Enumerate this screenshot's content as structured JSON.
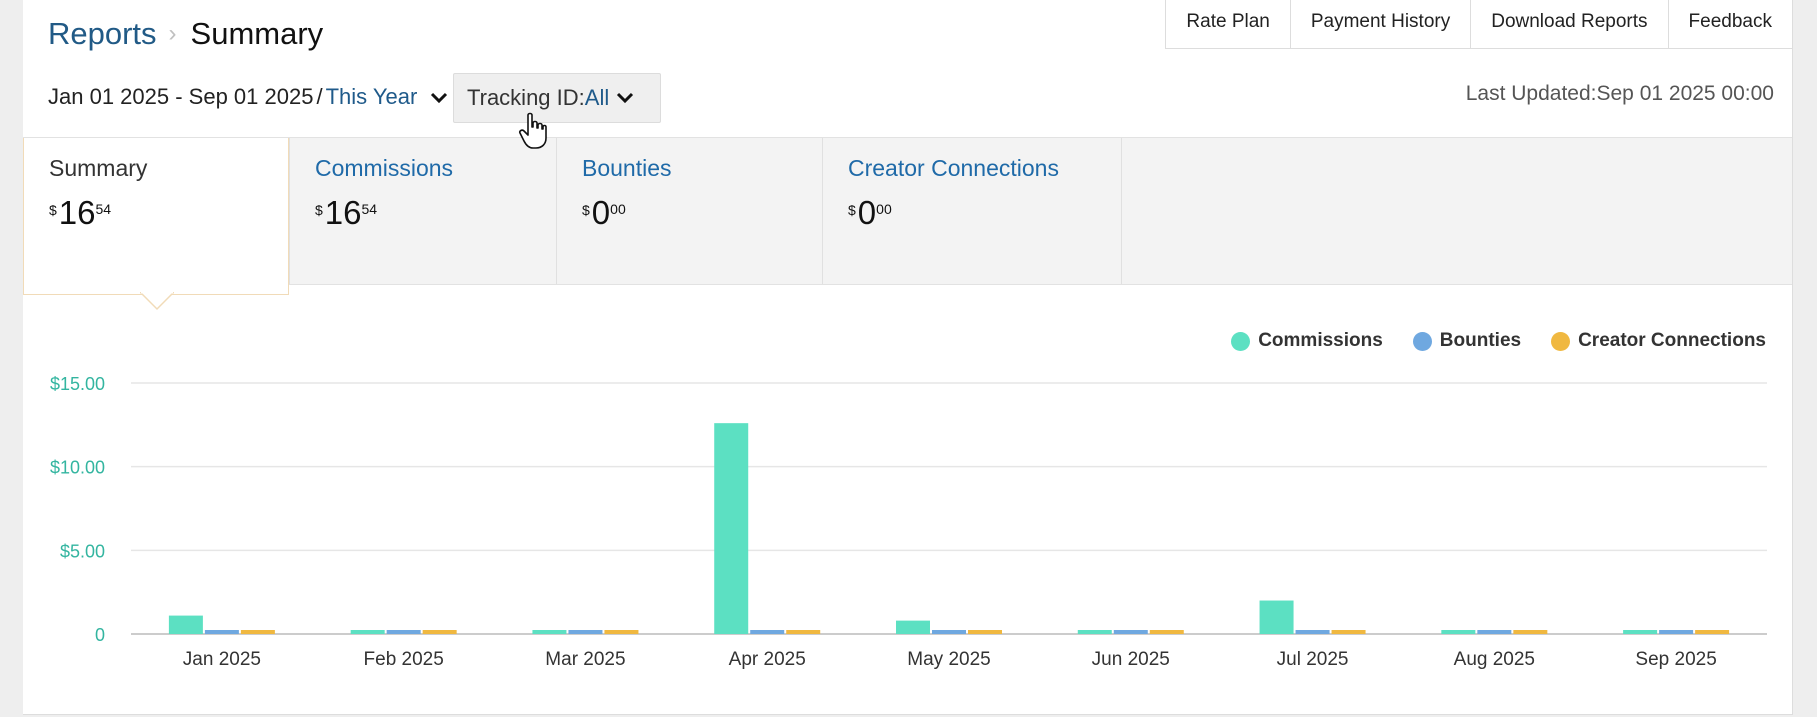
{
  "breadcrumb": {
    "parent": "Reports",
    "separator": "›",
    "current": "Summary"
  },
  "topnav": [
    {
      "label": "Rate Plan"
    },
    {
      "label": "Payment History"
    },
    {
      "label": "Download Reports"
    },
    {
      "label": "Feedback"
    }
  ],
  "date_range": {
    "text": "Jan 01 2025 - Sep 01 2025",
    "separator": "/",
    "preset": "This Year"
  },
  "tracking": {
    "label": "Tracking ID:",
    "value": "All"
  },
  "last_updated": "Last Updated:Sep 01 2025 00:00",
  "tabs": [
    {
      "title": "Summary",
      "currency": "$",
      "int": "16",
      "dec": "54",
      "active": true
    },
    {
      "title": "Commissions",
      "currency": "$",
      "int": "16",
      "dec": "54",
      "active": false
    },
    {
      "title": "Bounties",
      "currency": "$",
      "int": "0",
      "dec": "00",
      "active": false
    },
    {
      "title": "Creator Connections",
      "currency": "$",
      "int": "0",
      "dec": "00",
      "active": false
    }
  ],
  "legend": [
    {
      "name": "Commissions",
      "color": "#5ce0c2"
    },
    {
      "name": "Bounties",
      "color": "#6fa8e0"
    },
    {
      "name": "Creator Connections",
      "color": "#f0b840"
    }
  ],
  "chart_data": {
    "type": "bar",
    "categories": [
      "Jan 2025",
      "Feb 2025",
      "Mar 2025",
      "Apr 2025",
      "May 2025",
      "Jun 2025",
      "Jul 2025",
      "Aug 2025",
      "Sep 2025"
    ],
    "series": [
      {
        "name": "Commissions",
        "color": "#5ce0c2",
        "values": [
          1.1,
          0,
          0,
          12.6,
          0.8,
          0,
          2.0,
          0,
          0
        ]
      },
      {
        "name": "Bounties",
        "color": "#6fa8e0",
        "values": [
          0,
          0,
          0,
          0,
          0,
          0,
          0,
          0,
          0
        ]
      },
      {
        "name": "Creator Connections",
        "color": "#f0b840",
        "values": [
          0,
          0,
          0,
          0,
          0,
          0,
          0,
          0,
          0
        ]
      }
    ],
    "yticks": [
      0,
      5,
      10,
      15
    ],
    "ytick_labels": [
      "0",
      "$5.00",
      "$10.00",
      "$15.00"
    ],
    "ylim": [
      0,
      15
    ],
    "grid": true,
    "legend_position": "top-right",
    "title": "",
    "xlabel": "",
    "ylabel": ""
  }
}
